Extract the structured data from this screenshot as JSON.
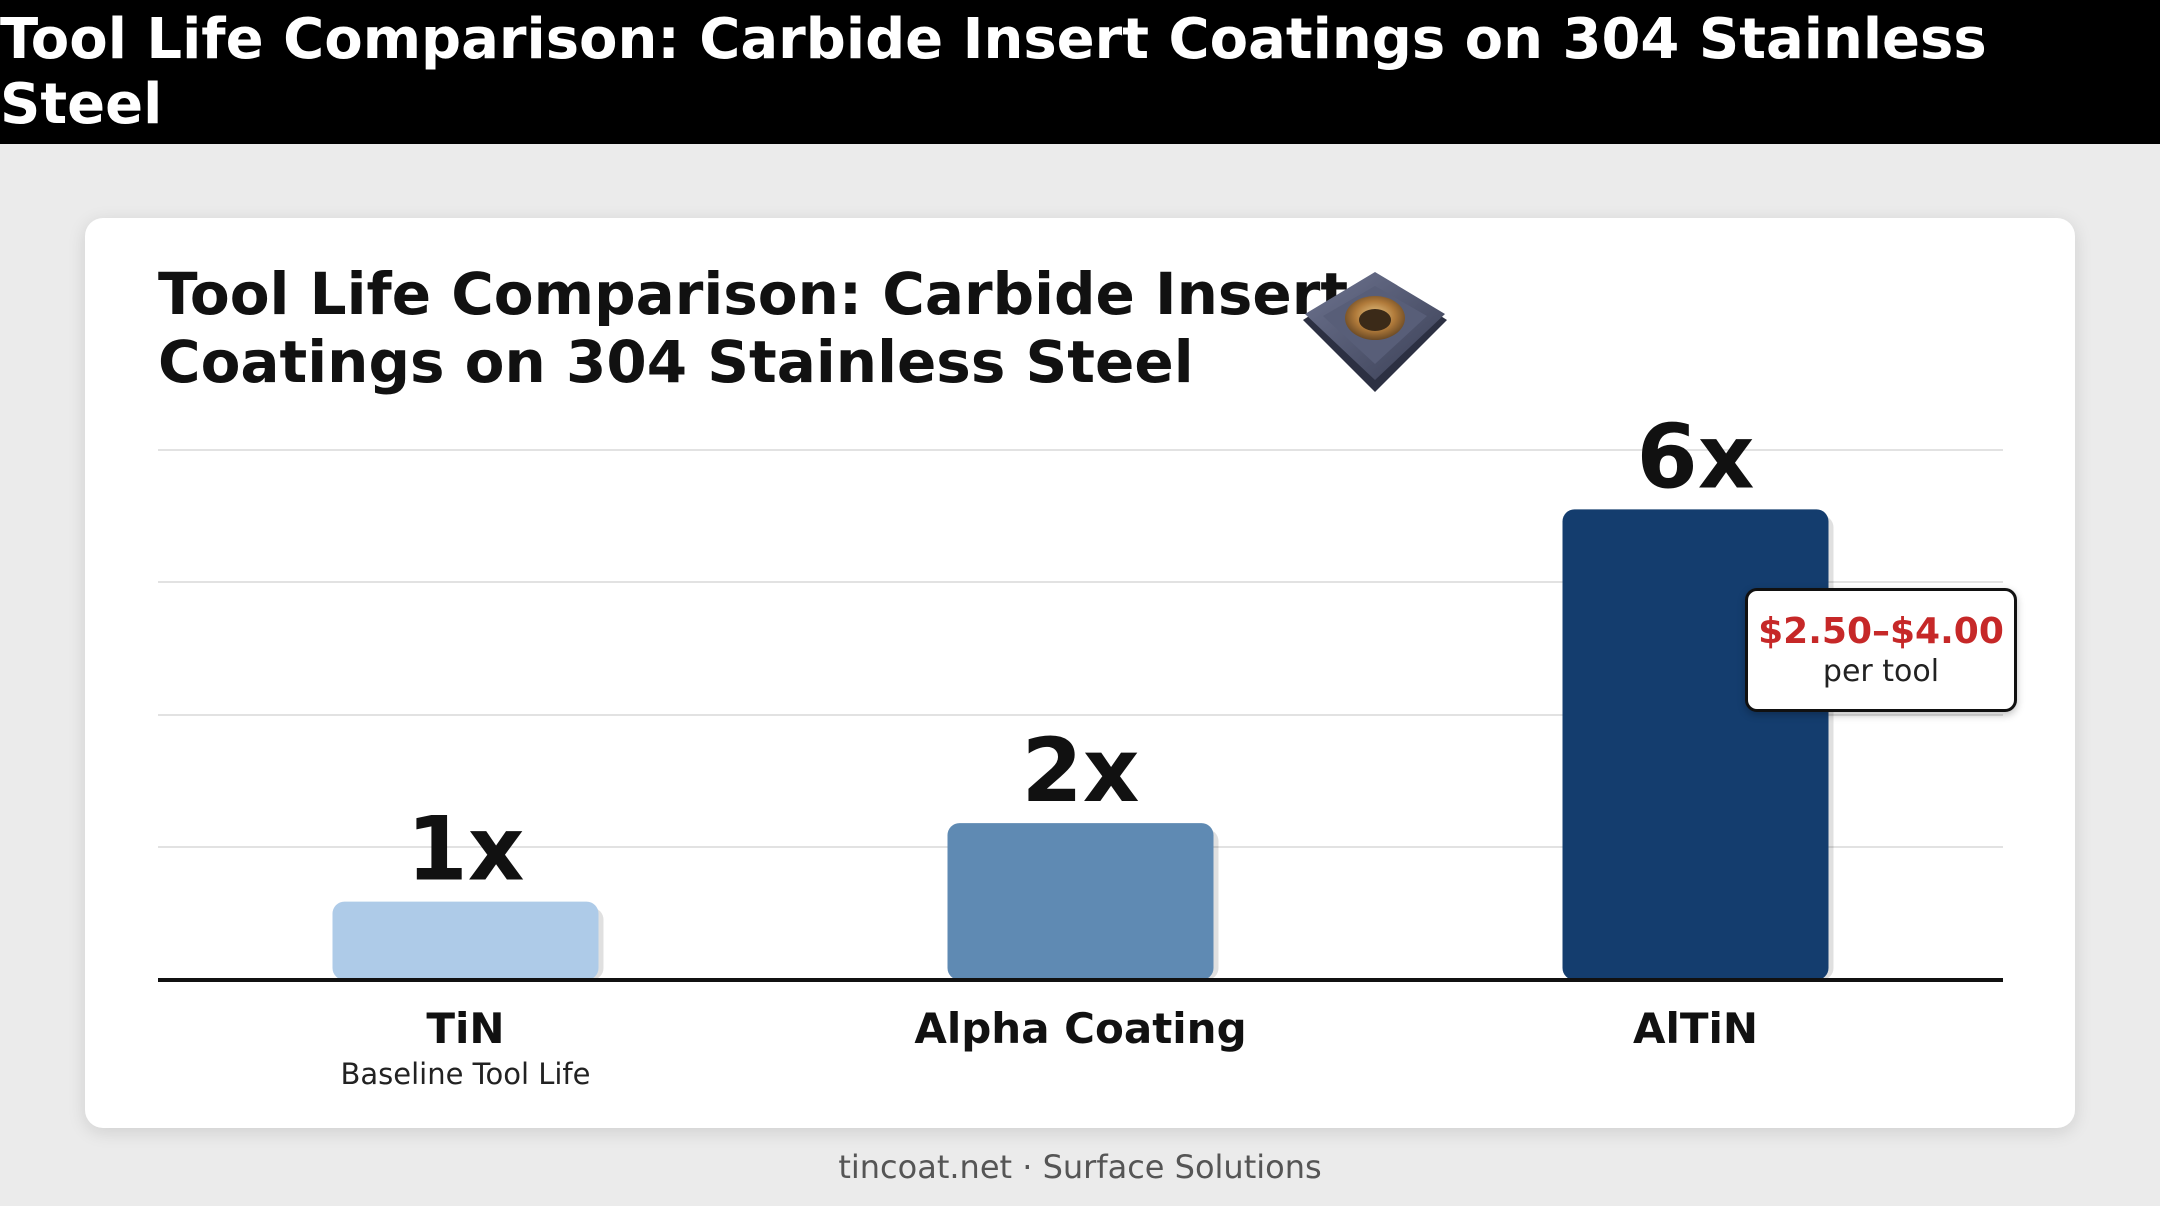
{
  "banner": {
    "title": "Tool Life Comparison: Carbide Insert Coatings on 304 Stainless Steel"
  },
  "footer": {
    "text": "tincoat.net · Surface Solutions"
  },
  "icons": {
    "insert": "carbide-insert-icon"
  },
  "callout": {
    "price": "$2.50–$4.00",
    "unit": "per tool"
  },
  "chart_data": {
    "type": "bar",
    "title": "Tool Life Comparison: Carbide Insert Coatings on 304 Stainless Steel",
    "xlabel": "",
    "ylabel": "",
    "categories": [
      "TiN",
      "Alpha Coating",
      "AlTiN"
    ],
    "subcategory_labels": [
      "Baseline Tool Life",
      "",
      ""
    ],
    "values": [
      1,
      2,
      6
    ],
    "value_labels": [
      "1x",
      "2x",
      "6x"
    ],
    "colors": [
      "#aecbe8",
      "#5f8ab3",
      "#143d6e"
    ],
    "ylim": [
      0,
      6.4
    ],
    "grid": true,
    "legend": "none"
  }
}
